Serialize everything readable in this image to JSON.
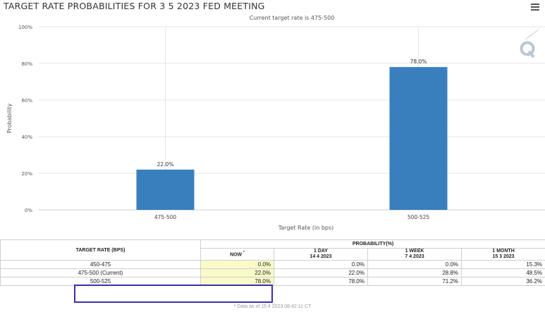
{
  "title": "TARGET RATE PROBABILITIES FOR 3 5 2023 FED MEETING",
  "menu_icon": "hamburger-menu-icon",
  "watermark_icon": "q-logo-icon",
  "chart_data": {
    "type": "bar",
    "subtitle": "Current target rate is 475-500",
    "categories": [
      "475-500",
      "500-525"
    ],
    "values": [
      22.0,
      78.0
    ],
    "data_labels": [
      "22.0%",
      "78.0%"
    ],
    "xlabel": "Target Rate (in bps)",
    "ylabel": "Probability",
    "ylim": [
      0,
      100
    ],
    "yticks": [
      "0%",
      "20%",
      "40%",
      "60%",
      "80%",
      "100%"
    ],
    "grid": true,
    "bar_color": "#3a7fbd"
  },
  "table": {
    "header_rate": "TARGET RATE (BPS)",
    "header_prob": "PROBABILITY(%)",
    "col_now": "NOW",
    "col_now_mark": "*",
    "cols": [
      {
        "line1": "1 DAY",
        "line2": "14 4 2023"
      },
      {
        "line1": "1 WEEK",
        "line2": "7 4 2023"
      },
      {
        "line1": "1 MONTH",
        "line2": "15 3 2023"
      }
    ],
    "rows": [
      {
        "rate": "450-475",
        "now": "0.0%",
        "day": "0.0%",
        "week": "0.0%",
        "month": "15.3%"
      },
      {
        "rate": "475-500 (Current)",
        "now": "22.0%",
        "day": "22.0%",
        "week": "28.8%",
        "month": "48.5%"
      },
      {
        "rate": "500-525",
        "now": "78.0%",
        "day": "78.0%",
        "week": "71.2%",
        "month": "36.2%"
      }
    ],
    "footnote": "* Data as of 15 4 2023 08:42:11 CT"
  }
}
